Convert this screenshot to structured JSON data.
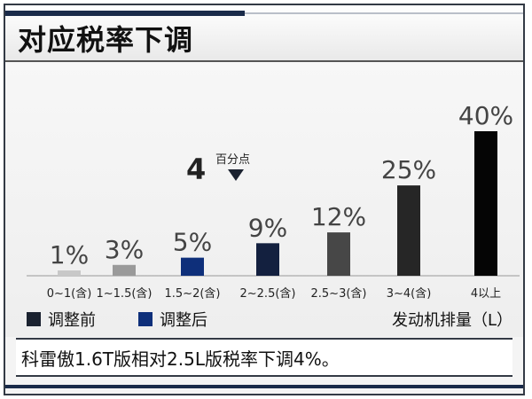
{
  "title": "对应税率下调",
  "footer_note": "科雷傲1.6T版相对2.5L版税率下调4%。",
  "callout": {
    "number": "4",
    "unit": "百分点"
  },
  "chart_data": {
    "type": "bar",
    "categories": [
      "0~1(含)",
      "1~1.5(含)",
      "1.5~2(含)",
      "2~2.5(含)",
      "2.5~3(含)",
      "3~4(含)",
      "4以上"
    ],
    "values": [
      1,
      3,
      5,
      9,
      12,
      25,
      40
    ],
    "value_labels": [
      "1%",
      "3%",
      "5%",
      "9%",
      "12%",
      "25%",
      "40%"
    ],
    "xlabel": "发动机排量（L）",
    "ylabel": "",
    "ylim": [
      0,
      40
    ],
    "grid": false,
    "bar_colors": [
      "#c8c8c8",
      "#9a9a9a",
      "#0e2f7a",
      "#13203f",
      "#474747",
      "#262626",
      "#050505"
    ],
    "legend": [
      {
        "label": "调整前",
        "color": "#1b2230"
      },
      {
        "label": "调整后",
        "color": "#0e2f7a"
      }
    ]
  }
}
